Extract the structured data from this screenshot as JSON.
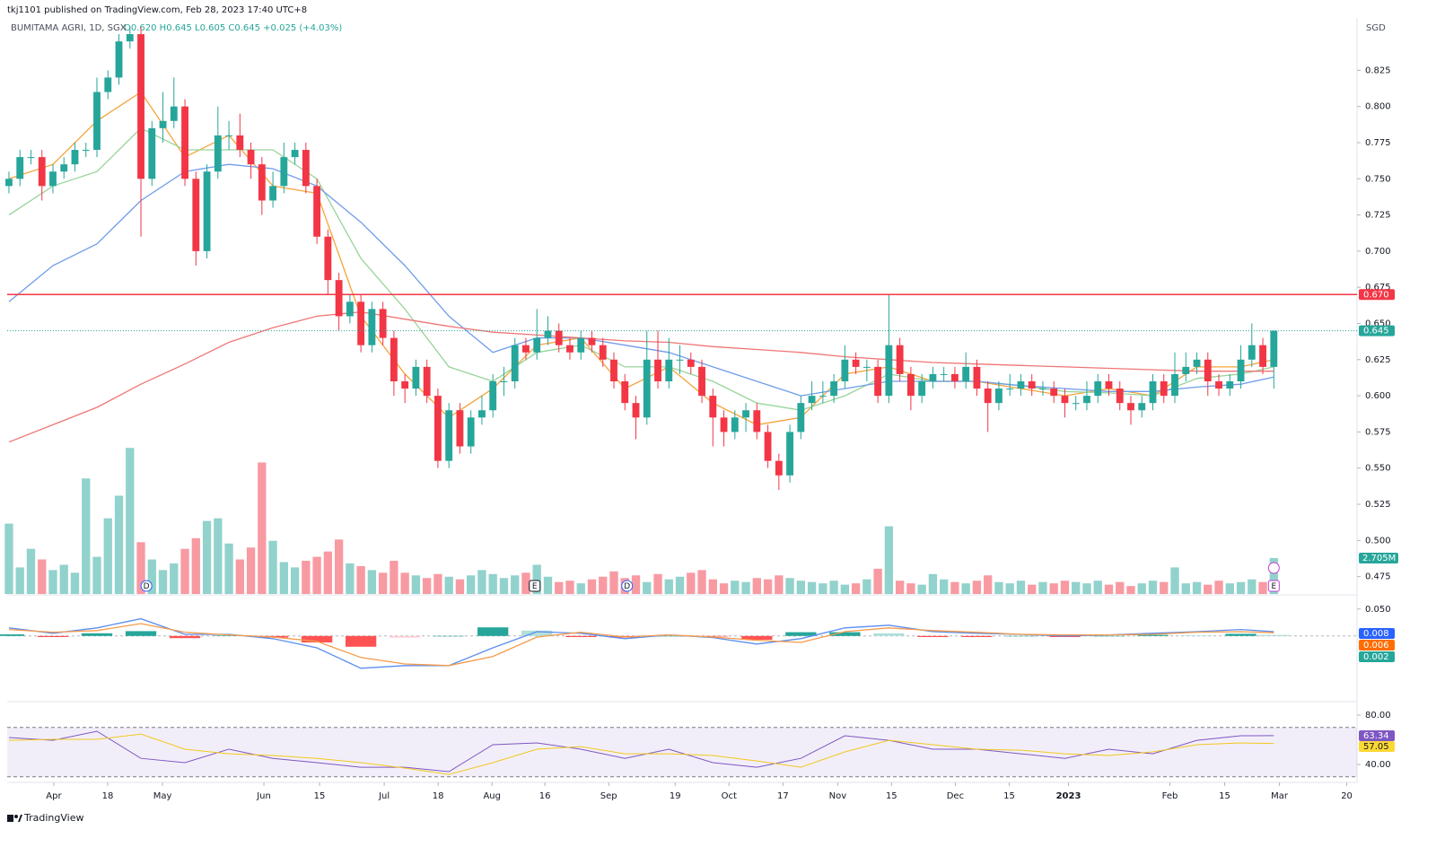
{
  "chart_data": {
    "type": "candlestick",
    "title": "tkj1101 published on TradingView.com, Feb 28, 2023 17:40 UTC+8",
    "symbol": "BUMITAMA AGRI, 1D, SGX",
    "ohlc_legend": "O0.620 H0.645 L0.605 C0.645 +0.025 (+4.03%)",
    "currency": "SGD",
    "footer": "TradingView",
    "up_color": "#26a69a",
    "down_color": "#f23645",
    "grid": false,
    "xlim": [
      -0.16,
      122.4
    ],
    "xticks": [
      {
        "value": 4.08,
        "label": "Apr"
      },
      {
        "value": 8.98,
        "label": "18"
      },
      {
        "value": 13.96,
        "label": "May"
      },
      {
        "value": 23.18,
        "label": "Jun"
      },
      {
        "value": 28.24,
        "label": "15"
      },
      {
        "value": 34.12,
        "label": "Jul"
      },
      {
        "value": 39.02,
        "label": "18"
      },
      {
        "value": 43.92,
        "label": "Aug"
      },
      {
        "value": 48.73,
        "label": "16"
      },
      {
        "value": 54.53,
        "label": "Sep"
      },
      {
        "value": 60.57,
        "label": "19"
      },
      {
        "value": 65.47,
        "label": "Oct"
      },
      {
        "value": 70.37,
        "label": "17"
      },
      {
        "value": 75.35,
        "label": "Nov"
      },
      {
        "value": 80.24,
        "label": "15"
      },
      {
        "value": 86.04,
        "label": "Dec"
      },
      {
        "value": 90.94,
        "label": "15"
      },
      {
        "value": 96.33,
        "label": "2023"
      },
      {
        "value": 105.55,
        "label": "Feb"
      },
      {
        "value": 110.53,
        "label": "15"
      },
      {
        "value": 115.51,
        "label": "Mar"
      },
      {
        "value": 121.63,
        "label": "20"
      }
    ],
    "ylim": [
      0.463,
      0.855
    ],
    "yticks": [
      0.475,
      {
        "value": 0.5,
        "label": "0.500"
      },
      0.525,
      {
        "value": 0.55,
        "label": "0.550"
      },
      0.575,
      {
        "value": 0.6,
        "label": "0.600"
      },
      0.625,
      {
        "value": 0.65,
        "label": "0.650"
      },
      0.675,
      {
        "value": 0.7,
        "label": "0.700"
      },
      0.725,
      {
        "value": 0.75,
        "label": "0.750"
      },
      0.775,
      {
        "value": 0.8,
        "label": "0.800"
      },
      0.825
    ],
    "open": [
      0.745,
      0.75,
      0.765,
      0.765,
      0.745,
      0.755,
      0.76,
      0.77,
      0.77,
      0.81,
      0.82,
      0.845,
      0.85,
      0.75,
      0.785,
      0.79,
      0.8,
      0.75,
      0.7,
      0.755,
      0.78,
      0.78,
      0.77,
      0.76,
      0.735,
      0.745,
      0.765,
      0.77,
      0.745,
      0.71,
      0.68,
      0.655,
      0.665,
      0.635,
      0.66,
      0.64,
      0.61,
      0.605,
      0.62,
      0.6,
      0.555,
      0.59,
      0.565,
      0.585,
      0.59,
      0.61,
      0.61,
      0.635,
      0.63,
      0.64,
      0.645,
      0.635,
      0.63,
      0.64,
      0.635,
      0.625,
      0.61,
      0.595,
      0.585,
      0.625,
      0.61,
      0.625,
      0.625,
      0.62,
      0.6,
      0.585,
      0.575,
      0.585,
      0.59,
      0.575,
      0.555,
      0.545,
      0.575,
      0.595,
      0.6,
      0.6,
      0.61,
      0.625,
      0.62,
      0.62,
      0.6,
      0.635,
      0.615,
      0.6,
      0.61,
      0.615,
      0.615,
      0.61,
      0.62,
      0.605,
      0.595,
      0.605,
      0.605,
      0.61,
      0.605,
      0.605,
      0.6,
      0.595,
      0.595,
      0.6,
      0.61,
      0.605,
      0.595,
      0.59,
      0.595,
      0.61,
      0.6,
      0.615,
      0.62,
      0.625,
      0.61,
      0.605,
      0.61,
      0.625,
      0.635,
      0.62
    ],
    "high": [
      0.755,
      0.77,
      0.77,
      0.77,
      0.76,
      0.765,
      0.775,
      0.775,
      0.82,
      0.825,
      0.85,
      0.855,
      0.855,
      0.79,
      0.81,
      0.82,
      0.805,
      0.755,
      0.76,
      0.8,
      0.79,
      0.795,
      0.775,
      0.765,
      0.755,
      0.775,
      0.775,
      0.775,
      0.75,
      0.715,
      0.685,
      0.67,
      0.67,
      0.665,
      0.665,
      0.645,
      0.615,
      0.625,
      0.625,
      0.605,
      0.595,
      0.595,
      0.59,
      0.6,
      0.615,
      0.62,
      0.64,
      0.64,
      0.66,
      0.655,
      0.65,
      0.64,
      0.645,
      0.645,
      0.64,
      0.63,
      0.615,
      0.6,
      0.645,
      0.645,
      0.64,
      0.635,
      0.63,
      0.625,
      0.605,
      0.59,
      0.59,
      0.595,
      0.595,
      0.58,
      0.56,
      0.58,
      0.6,
      0.61,
      0.61,
      0.615,
      0.635,
      0.63,
      0.625,
      0.625,
      0.67,
      0.64,
      0.62,
      0.615,
      0.62,
      0.62,
      0.62,
      0.63,
      0.625,
      0.61,
      0.61,
      0.615,
      0.615,
      0.615,
      0.61,
      0.61,
      0.605,
      0.6,
      0.61,
      0.615,
      0.615,
      0.61,
      0.6,
      0.6,
      0.615,
      0.615,
      0.63,
      0.63,
      0.63,
      0.63,
      0.615,
      0.615,
      0.635,
      0.65,
      0.64,
      0.645
    ],
    "low": [
      0.74,
      0.745,
      0.76,
      0.735,
      0.74,
      0.75,
      0.755,
      0.765,
      0.765,
      0.805,
      0.815,
      0.84,
      0.71,
      0.745,
      0.775,
      0.785,
      0.745,
      0.69,
      0.695,
      0.75,
      0.77,
      0.765,
      0.75,
      0.725,
      0.73,
      0.74,
      0.76,
      0.74,
      0.705,
      0.67,
      0.645,
      0.65,
      0.63,
      0.63,
      0.635,
      0.6,
      0.595,
      0.6,
      0.595,
      0.55,
      0.55,
      0.56,
      0.56,
      0.58,
      0.585,
      0.6,
      0.605,
      0.625,
      0.625,
      0.635,
      0.63,
      0.625,
      0.625,
      0.63,
      0.62,
      0.605,
      0.59,
      0.57,
      0.58,
      0.605,
      0.605,
      0.615,
      0.615,
      0.595,
      0.565,
      0.565,
      0.57,
      0.575,
      0.57,
      0.55,
      0.535,
      0.54,
      0.57,
      0.59,
      0.595,
      0.595,
      0.605,
      0.615,
      0.61,
      0.595,
      0.595,
      0.61,
      0.59,
      0.595,
      0.605,
      0.61,
      0.605,
      0.605,
      0.6,
      0.575,
      0.59,
      0.6,
      0.6,
      0.6,
      0.6,
      0.595,
      0.585,
      0.59,
      0.59,
      0.595,
      0.6,
      0.59,
      0.58,
      0.585,
      0.59,
      0.595,
      0.595,
      0.61,
      0.615,
      0.6,
      0.6,
      0.6,
      0.605,
      0.62,
      0.615,
      0.605
    ],
    "close": [
      0.75,
      0.765,
      0.765,
      0.745,
      0.755,
      0.76,
      0.77,
      0.77,
      0.81,
      0.82,
      0.845,
      0.85,
      0.75,
      0.785,
      0.79,
      0.8,
      0.75,
      0.7,
      0.755,
      0.78,
      0.78,
      0.77,
      0.76,
      0.735,
      0.745,
      0.765,
      0.77,
      0.745,
      0.71,
      0.68,
      0.655,
      0.665,
      0.635,
      0.66,
      0.64,
      0.61,
      0.605,
      0.62,
      0.6,
      0.555,
      0.59,
      0.565,
      0.585,
      0.59,
      0.61,
      0.61,
      0.635,
      0.63,
      0.64,
      0.645,
      0.635,
      0.63,
      0.64,
      0.635,
      0.625,
      0.61,
      0.595,
      0.585,
      0.625,
      0.61,
      0.625,
      0.625,
      0.62,
      0.6,
      0.585,
      0.575,
      0.585,
      0.59,
      0.575,
      0.555,
      0.545,
      0.575,
      0.595,
      0.6,
      0.6,
      0.61,
      0.625,
      0.62,
      0.62,
      0.6,
      0.635,
      0.615,
      0.6,
      0.61,
      0.615,
      0.615,
      0.61,
      0.62,
      0.605,
      0.595,
      0.605,
      0.605,
      0.61,
      0.605,
      0.605,
      0.6,
      0.595,
      0.595,
      0.6,
      0.61,
      0.605,
      0.595,
      0.59,
      0.595,
      0.61,
      0.6,
      0.615,
      0.62,
      0.625,
      0.61,
      0.605,
      0.61,
      0.625,
      0.635,
      0.62,
      0.645
    ],
    "hlines": [
      {
        "value": 0.67,
        "label": "0.670",
        "color": "#f23645"
      }
    ],
    "ma": {
      "x": [
        0,
        4,
        8,
        12,
        16,
        20,
        24,
        28,
        32,
        36,
        40,
        44,
        48,
        52,
        56,
        60,
        64,
        68,
        72,
        76,
        80,
        84,
        88,
        92,
        96,
        100,
        104,
        108,
        112,
        115
      ],
      "series": [
        {
          "color": "#f5a33a",
          "values": [
            0.75,
            0.76,
            0.79,
            0.81,
            0.765,
            0.78,
            0.745,
            0.74,
            0.655,
            0.615,
            0.585,
            0.605,
            0.635,
            0.64,
            0.605,
            0.62,
            0.595,
            0.58,
            0.585,
            0.615,
            0.62,
            0.61,
            0.61,
            0.605,
            0.6,
            0.605,
            0.6,
            0.62,
            0.62,
            0.625
          ]
        },
        {
          "color": "#98d49a",
          "values": [
            0.725,
            0.745,
            0.755,
            0.785,
            0.77,
            0.77,
            0.77,
            0.75,
            0.695,
            0.66,
            0.62,
            0.61,
            0.63,
            0.635,
            0.62,
            0.62,
            0.61,
            0.595,
            0.59,
            0.6,
            0.615,
            0.61,
            0.61,
            0.607,
            0.603,
            0.602,
            0.6,
            0.612,
            0.615,
            0.62
          ]
        },
        {
          "color": "#6f9ceb",
          "values": [
            0.665,
            0.69,
            0.705,
            0.735,
            0.755,
            0.76,
            0.757,
            0.745,
            0.72,
            0.69,
            0.655,
            0.63,
            0.64,
            0.64,
            0.635,
            0.63,
            0.62,
            0.61,
            0.6,
            0.605,
            0.61,
            0.61,
            0.61,
            0.607,
            0.605,
            0.603,
            0.603,
            0.606,
            0.608,
            0.613
          ]
        },
        {
          "color": "#f07575",
          "values": [
            0.568,
            0.58,
            0.592,
            0.608,
            0.622,
            0.637,
            0.647,
            0.655,
            0.658,
            0.653,
            0.648,
            0.644,
            0.642,
            0.64,
            0.638,
            0.637,
            0.634,
            0.632,
            0.63,
            0.627,
            0.625,
            0.623,
            0.622,
            0.621,
            0.62,
            0.619,
            0.618,
            0.617,
            0.617,
            0.617
          ]
        }
      ]
    },
    "volume": {
      "ylim": [
        0,
        30
      ],
      "last_label": "2.705M",
      "values": [
        5.3,
        2,
        3.4,
        2.6,
        1.8,
        2.2,
        1.6,
        8.7,
        2.8,
        5.7,
        7.4,
        11,
        3.9,
        2.6,
        1.8,
        2.3,
        3.4,
        4.2,
        5.5,
        5.7,
        3.8,
        2.6,
        3.5,
        9.9,
        4,
        2.4,
        2,
        2.5,
        2.8,
        3.2,
        4.1,
        2.3,
        2.1,
        1.8,
        1.6,
        2.5,
        1.6,
        1.4,
        1.2,
        1.5,
        1.3,
        1.1,
        1.4,
        1.8,
        1.5,
        1.2,
        1.4,
        1.6,
        2.2,
        1.3,
        0.9,
        1,
        0.8,
        1.1,
        1.3,
        1.7,
        1.2,
        1.4,
        0.9,
        1.5,
        1.1,
        1.3,
        1.6,
        1.8,
        1.1,
        0.8,
        1,
        0.9,
        1.2,
        1.1,
        1.4,
        1.2,
        1,
        0.9,
        0.8,
        1,
        0.7,
        0.8,
        1.1,
        1.9,
        5.1,
        1,
        0.8,
        0.7,
        1.5,
        1.1,
        0.9,
        0.8,
        1,
        1.4,
        0.9,
        0.8,
        1,
        0.7,
        0.9,
        0.8,
        1,
        0.9,
        0.8,
        1,
        0.7,
        0.9,
        0.6,
        0.8,
        1,
        0.9,
        2,
        0.8,
        0.9,
        0.7,
        1,
        0.8,
        0.9,
        1.1,
        0.9,
        2.705
      ]
    },
    "events": [
      {
        "label": "D",
        "x": 12.5
      },
      {
        "label": "E",
        "x": 47.8
      },
      {
        "label": "D",
        "x": 56.2
      },
      {
        "label": "E",
        "x": 115
      }
    ],
    "macd": {
      "ylim": [
        -0.122,
        0.068
      ],
      "yticks": [
        {
          "value": 0.05,
          "label": "0.050"
        }
      ],
      "x": [
        0,
        4,
        8,
        12,
        16,
        20,
        24,
        28,
        32,
        36,
        40,
        44,
        48,
        52,
        56,
        60,
        64,
        68,
        72,
        76,
        80,
        84,
        88,
        92,
        96,
        100,
        104,
        108,
        112,
        115
      ],
      "series": [
        {
          "color": "#5b8def",
          "values": [
            0.015,
            0.005,
            0.015,
            0.032,
            0.003,
            0.003,
            -0.005,
            -0.022,
            -0.06,
            -0.055,
            -0.055,
            -0.022,
            0.008,
            0.005,
            -0.005,
            0.002,
            -0.003,
            -0.015,
            -0.005,
            0.015,
            0.02,
            0.008,
            0.005,
            0.003,
            0,
            0.002,
            0.005,
            0.008,
            0.012,
            0.008
          ]
        },
        {
          "color": "#f59a4a",
          "values": [
            0.012,
            0.007,
            0.01,
            0.023,
            0.007,
            0.002,
            -0.002,
            -0.01,
            -0.04,
            -0.052,
            -0.055,
            -0.038,
            -0.002,
            0.007,
            -0.002,
            0.002,
            -0.002,
            -0.008,
            -0.012,
            0.008,
            0.015,
            0.01,
            0.007,
            0.003,
            0.002,
            0.002,
            0.003,
            0.007,
            0.008,
            0.006
          ]
        }
      ],
      "histogram": [
        0.003,
        -0.002,
        0.005,
        0.009,
        -0.004,
        0.001,
        -0.003,
        -0.012,
        -0.02,
        -0.003,
        0,
        0.016,
        0.01,
        -0.002,
        -0.003,
        0,
        -0.001,
        -0.007,
        0.007,
        0.007,
        0.005,
        -0.002,
        -0.002,
        0,
        -0.002,
        0,
        0.002,
        0.001,
        0.004,
        0.002
      ]
    },
    "rsi": {
      "ylim": [
        25.5,
        90.9
      ],
      "yticks": [
        {
          "value": 80,
          "label": "80.00"
        },
        {
          "value": 40,
          "label": "40.00"
        }
      ],
      "bands": [
        70,
        30
      ],
      "x": [
        0,
        4,
        8,
        12,
        16,
        20,
        24,
        28,
        32,
        36,
        40,
        44,
        48,
        52,
        56,
        60,
        64,
        68,
        72,
        76,
        80,
        84,
        88,
        92,
        96,
        100,
        104,
        108,
        112,
        115
      ],
      "series": [
        {
          "color": "#7e57c2",
          "values": [
            61.8,
            59.6,
            66.9,
            45,
            41.5,
            52.4,
            45,
            41.5,
            37.8,
            37.8,
            34.2,
            56,
            57.5,
            52.4,
            45,
            52.4,
            41.5,
            37.8,
            45,
            63.3,
            59.6,
            52.4,
            52.4,
            48.7,
            45,
            52.4,
            48.7,
            59.6,
            63.3,
            63.34
          ]
        },
        {
          "color": "#f2c81e",
          "values": [
            59.6,
            60.4,
            60.4,
            64.7,
            52.4,
            48.7,
            47.3,
            45,
            41.5,
            37.1,
            32,
            41.5,
            52.4,
            54.5,
            48.7,
            48.7,
            47.3,
            42.9,
            37.8,
            50.2,
            59.6,
            56,
            52.4,
            51.6,
            48.7,
            47.3,
            50.2,
            56,
            57.5,
            57.05
          ]
        }
      ]
    }
  }
}
